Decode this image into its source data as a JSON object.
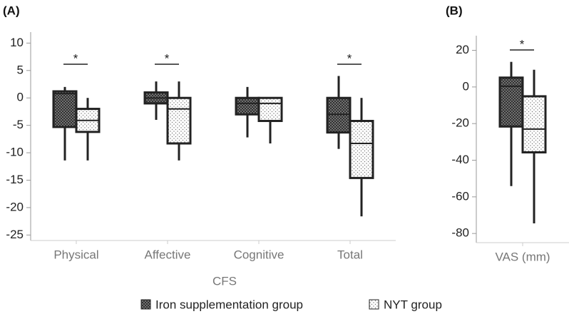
{
  "chart_data": [
    {
      "type": "box",
      "panel_label": "(A)",
      "x_label": "CFS",
      "categories": [
        "Physical",
        "Affective",
        "Cognitive",
        "Total"
      ],
      "ylim": [
        -26,
        12
      ],
      "yticks": [
        10,
        5,
        0,
        -5,
        -10,
        -15,
        -20,
        -25
      ],
      "series": [
        {
          "name": "Iron supplementation group",
          "pattern": "crosshatch",
          "values": [
            {
              "min": -11.4,
              "q1": -5.3,
              "median": 0.8,
              "q3": 1.2,
              "max": 2
            },
            {
              "min": -4,
              "q1": -1,
              "median": 0,
              "q3": 1,
              "max": 3
            },
            {
              "min": -7.2,
              "q1": -3,
              "median": -1,
              "q3": 0,
              "max": 2
            },
            {
              "min": -9.3,
              "q1": -6.3,
              "median": -3,
              "q3": 0,
              "max": 4
            }
          ]
        },
        {
          "name": "NYT group",
          "pattern": "dots",
          "values": [
            {
              "min": -11.4,
              "q1": -6.2,
              "median": -4.1,
              "q3": -2,
              "max": 0
            },
            {
              "min": -11.4,
              "q1": -8.3,
              "median": -2,
              "q3": 0,
              "max": 3
            },
            {
              "min": -8.3,
              "q1": -4.2,
              "median": -1,
              "q3": 0,
              "max": 0
            },
            {
              "min": -21.6,
              "q1": -14.6,
              "median": -8.3,
              "q3": -4.2,
              "max": 0
            }
          ]
        }
      ],
      "significance": [
        "*",
        "*",
        null,
        "*"
      ]
    },
    {
      "type": "box",
      "panel_label": "(B)",
      "categories": [
        "VAS (mm)"
      ],
      "ylim": [
        -85,
        28
      ],
      "yticks": [
        20,
        0,
        -20,
        -40,
        -60,
        -80
      ],
      "series": [
        {
          "pattern": "crosshatch",
          "values": [
            {
              "min": -54.1,
              "q1": -21.6,
              "median": 0.4,
              "q3": 5.1,
              "max": 13.7
            }
          ]
        },
        {
          "pattern": "dots",
          "values": [
            {
              "min": -74.5,
              "q1": -35.7,
              "median": -23,
              "q3": -5.1,
              "max": 9.4
            }
          ]
        }
      ],
      "significance": [
        "*"
      ]
    }
  ]
}
